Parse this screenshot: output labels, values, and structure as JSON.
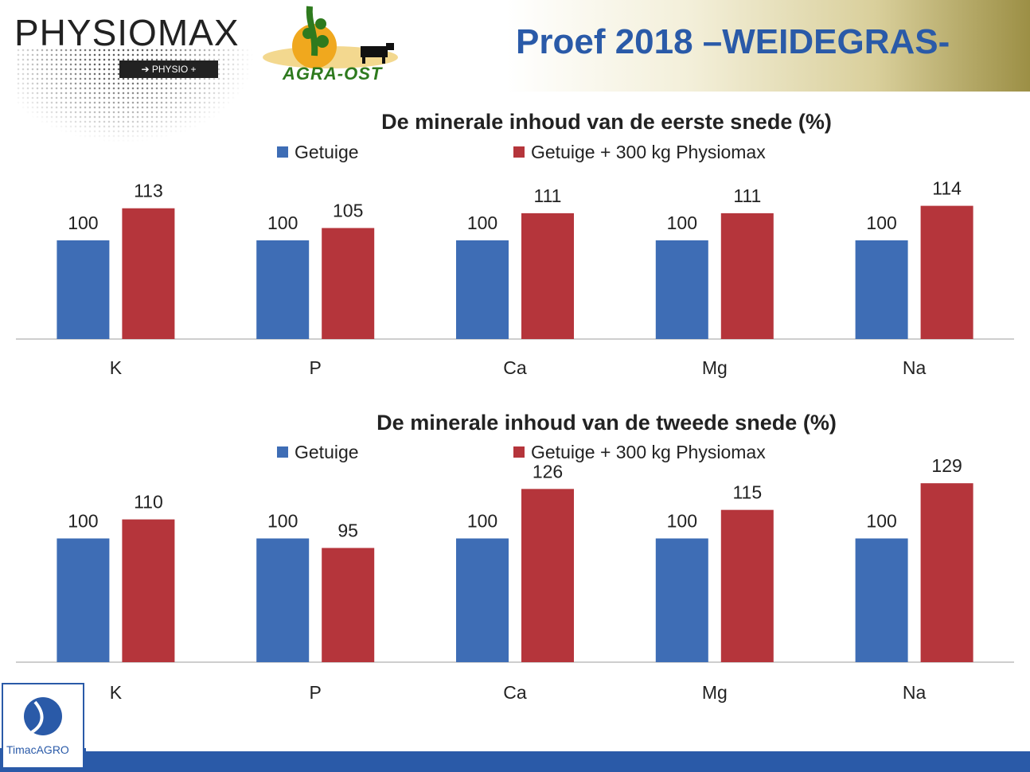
{
  "header": {
    "title": "Proef 2018 –WEIDEGRAS-",
    "band_color": "#d9cf9b"
  },
  "logos": {
    "physiomax": {
      "name": "PHYSIOMAX",
      "badge": "➔ PHYSIO +"
    },
    "agra": {
      "name": "AGRA-OST"
    },
    "timac": {
      "name": "TimacAGRO"
    }
  },
  "colors": {
    "getuige": "#3e6db5",
    "physiomax": "#b5353b",
    "accent": "#2a5aa8"
  },
  "chart_data": [
    {
      "type": "bar",
      "title": "De minerale inhoud van de eerste snede (%)",
      "categories": [
        "K",
        "P",
        "Ca",
        "Mg",
        "Na"
      ],
      "series": [
        {
          "name": "Getuige",
          "values": [
            100,
            100,
            100,
            100,
            100
          ]
        },
        {
          "name": "Getuige + 300 kg Physiomax",
          "values": [
            113,
            105,
            111,
            111,
            114
          ]
        }
      ],
      "ylim": [
        60,
        120
      ],
      "grid": false,
      "legend": "top"
    },
    {
      "type": "bar",
      "title": "De minerale inhoud van de tweede snede (%)",
      "categories": [
        "K",
        "P",
        "Ca",
        "Mg",
        "Na"
      ],
      "series": [
        {
          "name": "Getuige",
          "values": [
            100,
            100,
            100,
            100,
            100
          ]
        },
        {
          "name": "Getuige + 300 kg Physiomax",
          "values": [
            110,
            95,
            126,
            115,
            129
          ]
        }
      ],
      "ylim": [
        35,
        132
      ],
      "grid": false,
      "legend": "top"
    }
  ]
}
